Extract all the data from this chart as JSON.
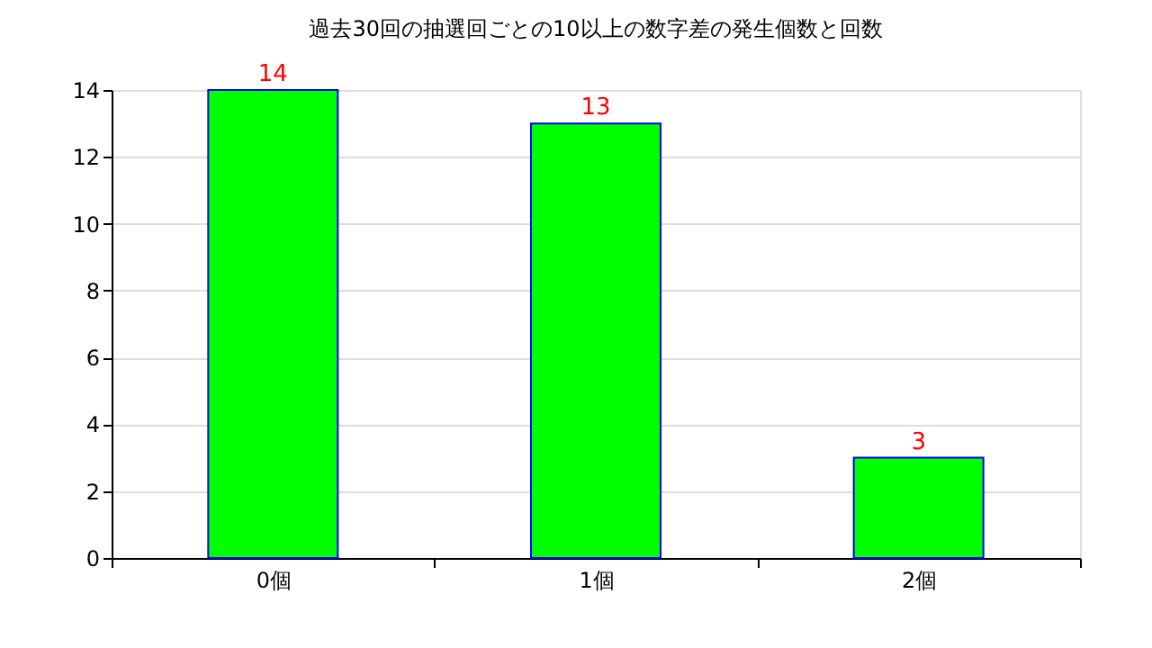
{
  "chart_data": {
    "type": "bar",
    "title": "過去30回の抽選回ごとの10以上の数字差の発生個数と回数",
    "categories": [
      "0個",
      "1個",
      "2個"
    ],
    "values": [
      14,
      13,
      3
    ],
    "color": "#00ff00",
    "ylim": [
      0,
      14
    ],
    "yticks": [
      0,
      2,
      4,
      6,
      8,
      10,
      12,
      14
    ],
    "grid": "y",
    "data_labels": true
  }
}
